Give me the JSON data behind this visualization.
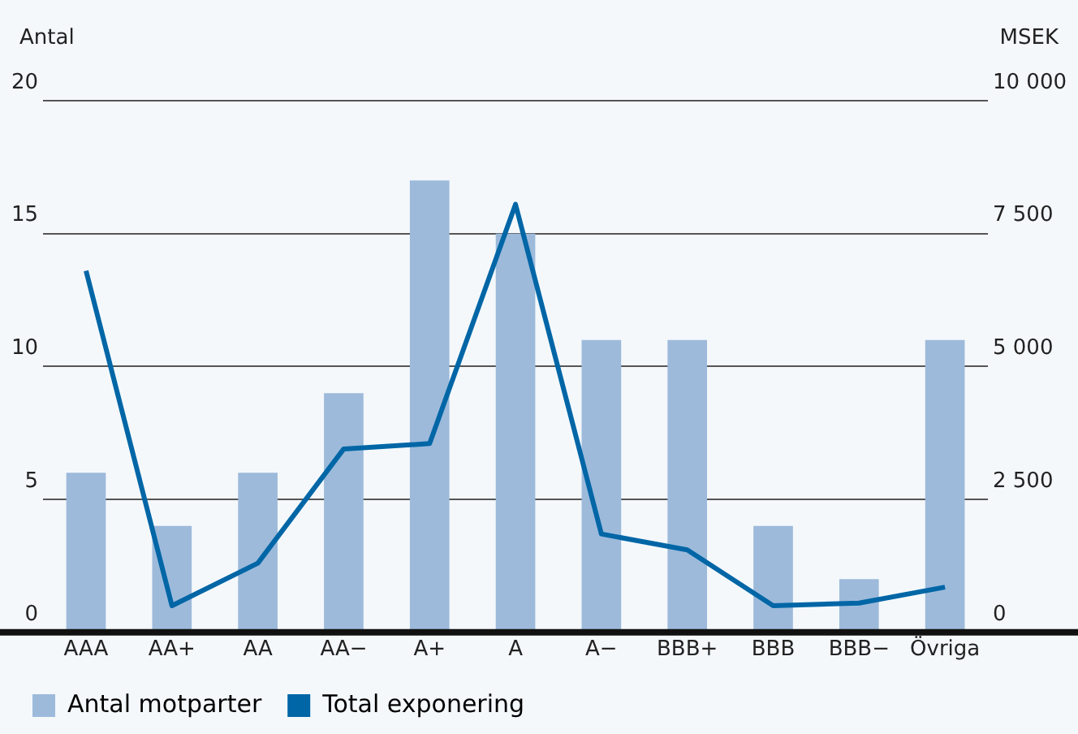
{
  "chart_data": {
    "type": "bar",
    "ylabel": "Antal",
    "y2label": "MSEK",
    "categories": [
      "AAA",
      "AA+",
      "AA",
      "AA−",
      "A+",
      "A",
      "A−",
      "BBB+",
      "BBB",
      "BBB−",
      "Övriga"
    ],
    "series": [
      {
        "name": "Antal motparter",
        "color": "#9dbadb",
        "values": [
          6,
          4,
          6,
          9,
          17,
          15,
          11,
          11,
          4,
          2,
          11
        ]
      },
      {
        "name": "Total exponering",
        "type": "line",
        "axis": "y2",
        "color": "#0066a6",
        "marker": "none",
        "values": [
          6800,
          500,
          1300,
          3450,
          3550,
          8050,
          1850,
          1550,
          500,
          550,
          850
        ]
      }
    ],
    "ylim": [
      0,
      20
    ],
    "yticks": [
      0,
      5,
      10,
      15,
      20
    ],
    "y2lim": [
      0,
      10000
    ],
    "y2ticks": [
      0,
      {
        "value": 2500,
        "label": "2 500"
      },
      {
        "value": 5000,
        "label": "5 000"
      },
      {
        "value": 7500,
        "label": "7 500"
      },
      {
        "value": 10000,
        "label": "10 000"
      }
    ],
    "grid": "y",
    "legend": "bottom left"
  }
}
